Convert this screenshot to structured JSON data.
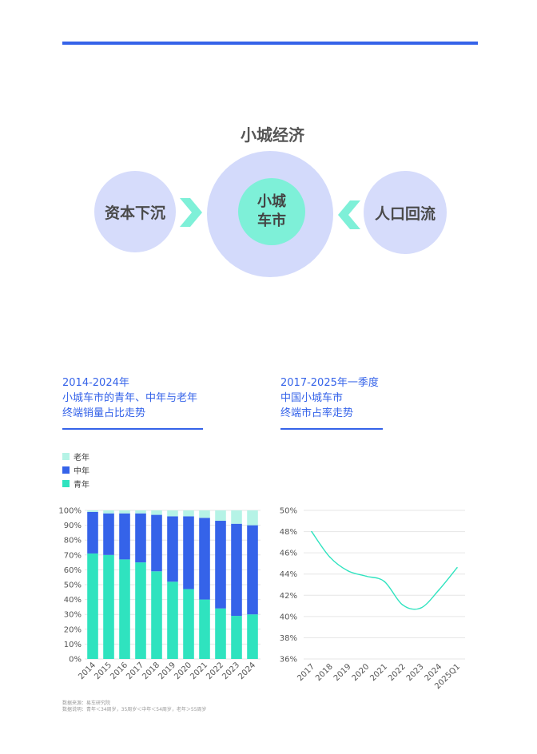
{
  "diagram": {
    "title": "小城经济",
    "left": "资本下沉",
    "center_line1": "小城",
    "center_line2": "车市",
    "right": "人口回流",
    "colors": {
      "outer": "#d6dcfb",
      "center": "#7ef0d8",
      "arrow": "#7ef0d8"
    }
  },
  "left_section": {
    "line1": "2014-2024年",
    "line2": "小城车市的青年、中年与老年",
    "line3": "终端销量占比走势"
  },
  "right_section": {
    "line1": "2017-2025年一季度",
    "line2": "中国小城车市",
    "line3": "终端市占率走势"
  },
  "legend": [
    {
      "label": "老年",
      "color": "#b5f3e6"
    },
    {
      "label": "中年",
      "color": "#3563e9"
    },
    {
      "label": "青年",
      "color": "#2fe3bf"
    }
  ],
  "chart_data": [
    {
      "type": "bar",
      "stacked": true,
      "categories": [
        "2014",
        "2015",
        "2016",
        "2017",
        "2018",
        "2019",
        "2020",
        "2021",
        "2022",
        "2023",
        "2024"
      ],
      "series": [
        {
          "name": "青年",
          "color": "#2fe3bf",
          "values": [
            71,
            70,
            67,
            65,
            59,
            52,
            47,
            40,
            34,
            29,
            30
          ]
        },
        {
          "name": "中年",
          "color": "#3563e9",
          "values": [
            28,
            28,
            31,
            33,
            38,
            44,
            49,
            55,
            59,
            62,
            60
          ]
        },
        {
          "name": "老年",
          "color": "#b5f3e6",
          "values": [
            1,
            2,
            2,
            2,
            3,
            4,
            4,
            5,
            7,
            9,
            10
          ]
        }
      ],
      "y_ticks": [
        "0%",
        "10%",
        "20%",
        "30%",
        "40%",
        "50%",
        "60%",
        "70%",
        "80%",
        "90%",
        "100%"
      ],
      "ylim": [
        0,
        100
      ],
      "grid": true,
      "legend_position": "top-left"
    },
    {
      "type": "line",
      "categories": [
        "2017",
        "2018",
        "2019",
        "2020",
        "2021",
        "2022",
        "2023",
        "2024",
        "2025Q1"
      ],
      "series": [
        {
          "color": "#2fe3bf",
          "values": [
            48.0,
            45.6,
            44.3,
            43.8,
            43.3,
            41.1,
            40.8,
            42.5,
            44.6
          ]
        }
      ],
      "y_ticks": [
        "36%",
        "38%",
        "40%",
        "42%",
        "44%",
        "46%",
        "48%",
        "50%"
      ],
      "ylim": [
        36,
        50
      ],
      "grid": true
    }
  ],
  "footnote": {
    "line1": "数据来源：易车研究院",
    "line2": "数据说明：青年＜34周岁，35周岁＜中年＜54周岁，老年＞55周岁"
  }
}
